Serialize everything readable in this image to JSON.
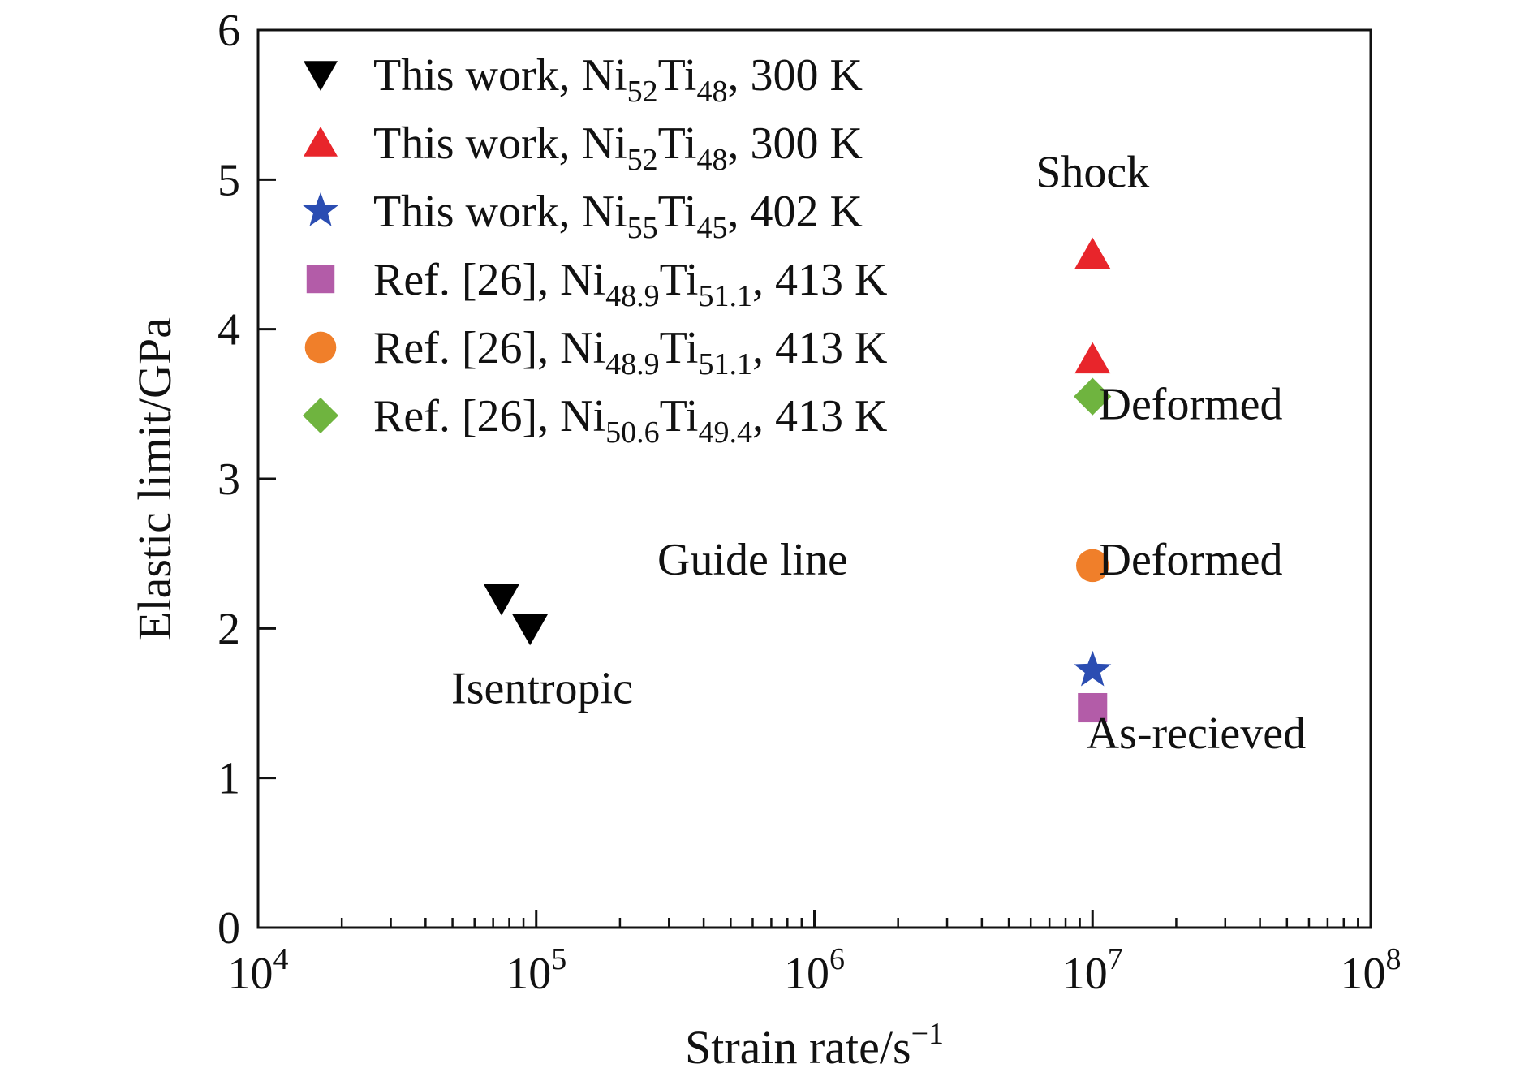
{
  "chart_data": {
    "type": "scatter",
    "xlabel": "Strain rate/s",
    "xlabel_sup": "−1",
    "ylabel": "Elastic limit/GPa",
    "x_scale": "log",
    "xlim": [
      10000,
      100000000
    ],
    "ylim": [
      0,
      6
    ],
    "x_ticks": [
      {
        "base": "10",
        "exp": "4",
        "value": 10000
      },
      {
        "base": "10",
        "exp": "5",
        "value": 100000
      },
      {
        "base": "10",
        "exp": "6",
        "value": 1000000
      },
      {
        "base": "10",
        "exp": "7",
        "value": 10000000
      },
      {
        "base": "10",
        "exp": "8",
        "value": 100000000
      }
    ],
    "y_ticks": [
      "0",
      "1",
      "2",
      "3",
      "4",
      "5",
      "6"
    ],
    "grid": false,
    "legend_position": "top-left",
    "series": [
      {
        "legend": [
          {
            "t": "This work, Ni"
          },
          {
            "t": "52",
            "sub": true
          },
          {
            "t": "Ti"
          },
          {
            "t": "48",
            "sub": true
          },
          {
            "t": ", 300 K"
          }
        ],
        "marker": "triangle-down",
        "color": "#000000",
        "points": [
          {
            "x": 75000,
            "y": 2.2
          },
          {
            "x": 95000,
            "y": 2.0
          }
        ]
      },
      {
        "legend": [
          {
            "t": "This work, Ni"
          },
          {
            "t": "52",
            "sub": true
          },
          {
            "t": "Ti"
          },
          {
            "t": "48",
            "sub": true
          },
          {
            "t": ", 300 K"
          }
        ],
        "marker": "triangle-up",
        "color": "#e8252b",
        "points": [
          {
            "x": 10000000,
            "y": 4.5
          },
          {
            "x": 10000000,
            "y": 3.8
          }
        ]
      },
      {
        "legend": [
          {
            "t": "This work, Ni"
          },
          {
            "t": "55",
            "sub": true
          },
          {
            "t": "Ti"
          },
          {
            "t": "45",
            "sub": true
          },
          {
            "t": ", 402 K"
          }
        ],
        "marker": "star",
        "color": "#2b4db2",
        "points": [
          {
            "x": 10000000,
            "y": 1.72
          }
        ]
      },
      {
        "legend": [
          {
            "t": "Ref. [26], Ni"
          },
          {
            "t": "48.9",
            "sub": true
          },
          {
            "t": "Ti"
          },
          {
            "t": "51.1",
            "sub": true
          },
          {
            "t": ", 413 K"
          }
        ],
        "marker": "square",
        "color": "#b35ca8",
        "points": [
          {
            "x": 10000000,
            "y": 1.47
          }
        ]
      },
      {
        "legend": [
          {
            "t": "Ref. [26], Ni"
          },
          {
            "t": "48.9",
            "sub": true
          },
          {
            "t": "Ti"
          },
          {
            "t": "51.1",
            "sub": true
          },
          {
            "t": ", 413 K"
          }
        ],
        "marker": "circle",
        "color": "#f07f2a",
        "points": [
          {
            "x": 10000000,
            "y": 2.42
          }
        ]
      },
      {
        "legend": [
          {
            "t": "Ref. [26], Ni"
          },
          {
            "t": "50.6",
            "sub": true
          },
          {
            "t": "Ti"
          },
          {
            "t": "49.4",
            "sub": true
          },
          {
            "t": ", 413 K"
          }
        ],
        "marker": "diamond",
        "color": "#6fb43f",
        "points": [
          {
            "x": 10000000,
            "y": 3.55
          }
        ]
      }
    ],
    "annotations": [
      {
        "text": "Shock",
        "x": 10000000,
        "y": 4.95,
        "anchor": "middle"
      },
      {
        "text": "Deformed",
        "x": 10500000,
        "y": 3.4,
        "anchor": "start"
      },
      {
        "text": "Guide line",
        "x": 600000,
        "y": 2.36,
        "anchor": "middle"
      },
      {
        "text": "Deformed",
        "x": 10500000,
        "y": 2.36,
        "anchor": "start"
      },
      {
        "text": "Isentropic",
        "x": 105000,
        "y": 1.5,
        "anchor": "middle"
      },
      {
        "text": "As-recieved",
        "x": 9500000,
        "y": 1.2,
        "anchor": "start"
      }
    ]
  }
}
